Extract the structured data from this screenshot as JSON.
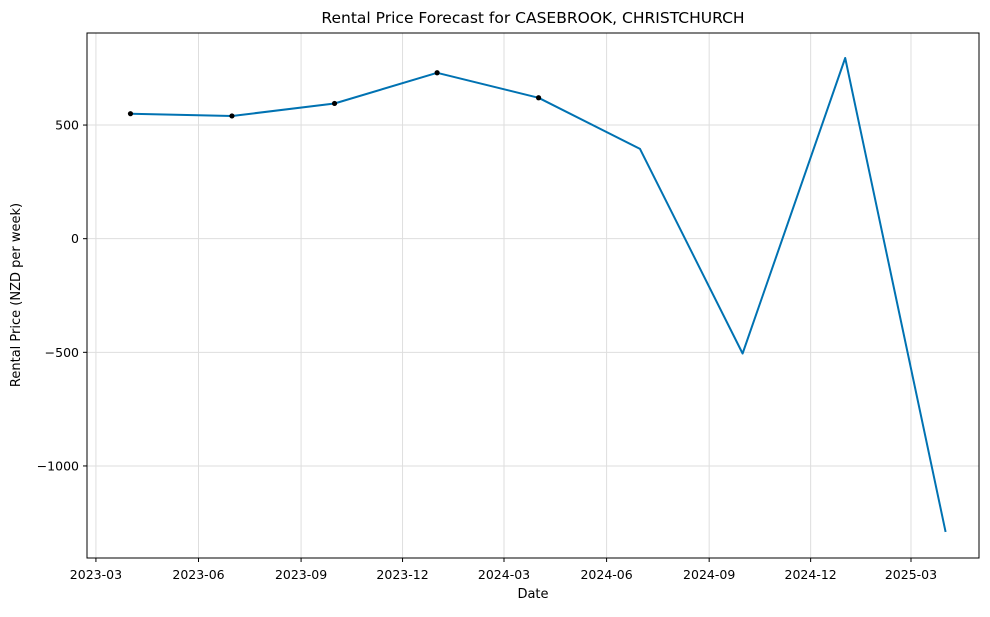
{
  "chart_data": {
    "type": "line",
    "title": "Rental Price Forecast for CASEBROOK, CHRISTCHURCH",
    "xlabel": "Date",
    "ylabel": "Rental Price (NZD per week)",
    "grid": true,
    "x_ticks": [
      "2023-03-01",
      "2023-06-01",
      "2023-09-01",
      "2023-12-01",
      "2024-03-01",
      "2024-06-01",
      "2024-09-01",
      "2024-12-01",
      "2025-03-01"
    ],
    "x_tick_labels": [
      "2023-03",
      "2023-06",
      "2023-09",
      "2023-12",
      "2024-03",
      "2024-06",
      "2024-09",
      "2024-12",
      "2025-03"
    ],
    "xlim": [
      "2023-02-21",
      "2025-05-01"
    ],
    "y_ticks": [
      -1000,
      -500,
      0,
      500
    ],
    "y_tick_labels": [
      "−1000",
      "−500",
      "0",
      "500"
    ],
    "ylim": [
      -1405,
      905
    ],
    "series": [
      {
        "role": "forecast",
        "color": "#0072B2",
        "x": [
          "2023-04-01",
          "2023-07-01",
          "2023-10-01",
          "2024-01-01",
          "2024-04-01",
          "2024-07-01",
          "2024-10-01",
          "2025-01-01",
          "2025-04-01"
        ],
        "y": [
          550,
          540,
          595,
          730,
          620,
          395,
          -505,
          795,
          -1290
        ]
      },
      {
        "role": "observed",
        "color": "#000000",
        "x": [
          "2023-04-01",
          "2023-07-01",
          "2023-10-01",
          "2024-01-01",
          "2024-04-01"
        ],
        "y": [
          550,
          540,
          595,
          730,
          620
        ]
      }
    ]
  }
}
